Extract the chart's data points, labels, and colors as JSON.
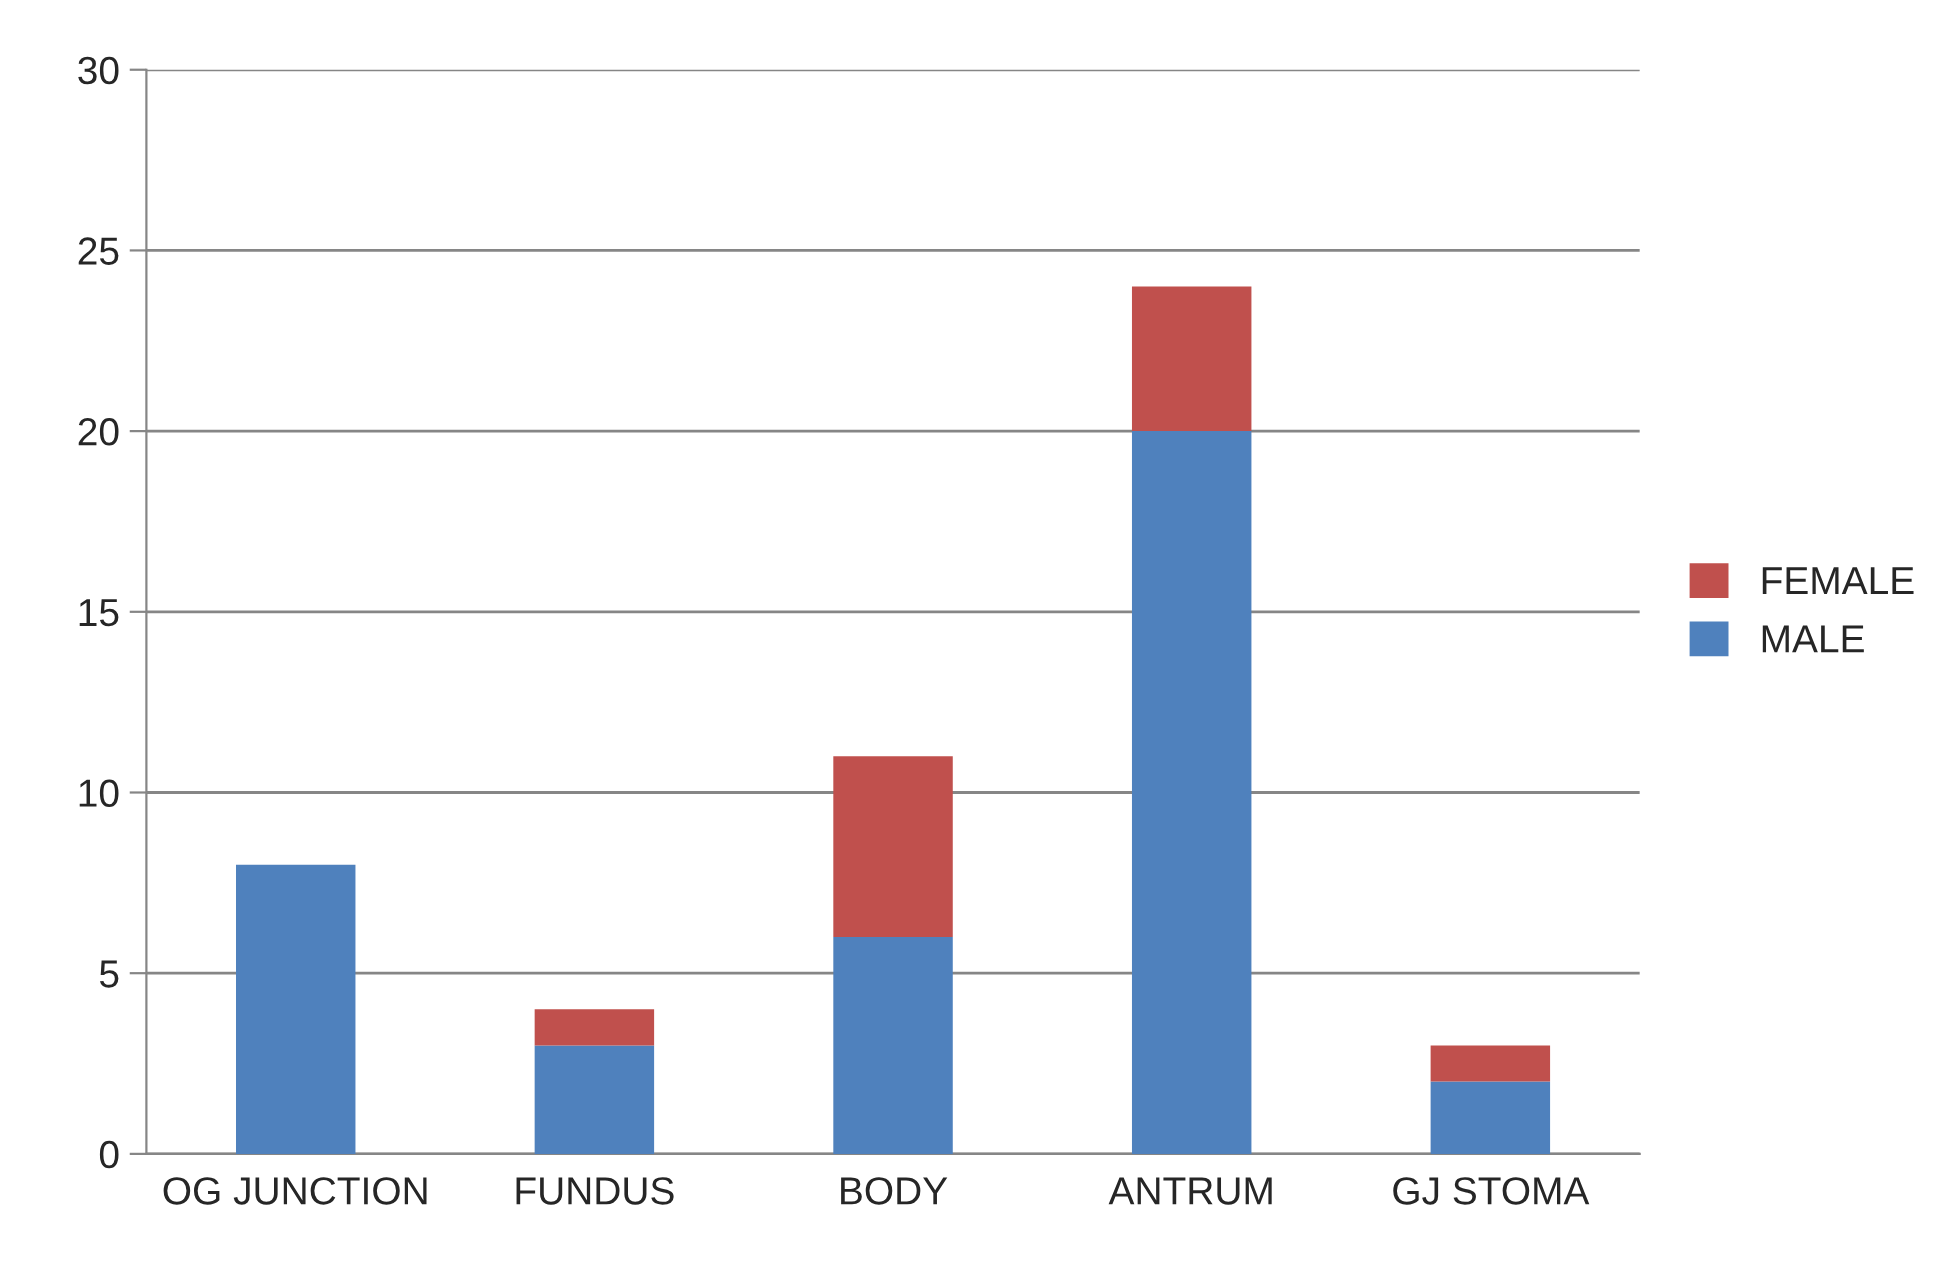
{
  "chart_data": {
    "type": "bar",
    "stacked": true,
    "categories": [
      "OG JUNCTION",
      "FUNDUS",
      "BODY",
      "ANTRUM",
      "GJ STOMA"
    ],
    "series": [
      {
        "name": "MALE",
        "color": "#4f81bd",
        "values": [
          8,
          3,
          6,
          20,
          2
        ]
      },
      {
        "name": "FEMALE",
        "color": "#c0504d",
        "values": [
          null,
          1,
          5,
          4,
          1
        ]
      }
    ],
    "ylim": [
      0,
      30
    ],
    "yticks": [
      0,
      5,
      10,
      15,
      20,
      25,
      30
    ],
    "grid": "y",
    "legend": "right"
  }
}
